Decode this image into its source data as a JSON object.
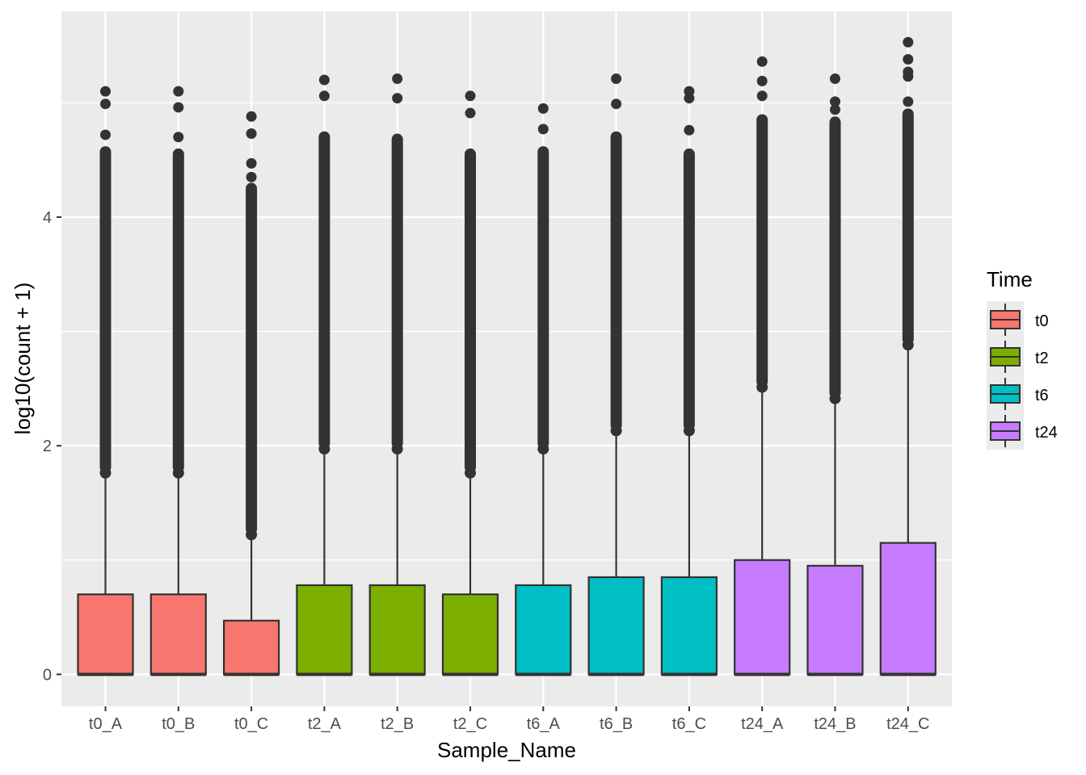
{
  "chart_data": {
    "type": "boxplot",
    "xlabel": "Sample_Name",
    "ylabel": "log10(count + 1)",
    "ylim": [
      -0.28,
      5.8
    ],
    "y_ticks": [
      0,
      2,
      4
    ],
    "grid": true,
    "legend": {
      "title": "Time",
      "position": "right",
      "entries": [
        {
          "label": "t0",
          "color": "#F8766D"
        },
        {
          "label": "t2",
          "color": "#7CAE00"
        },
        {
          "label": "t6",
          "color": "#00BFC4"
        },
        {
          "label": "t24",
          "color": "#C77CFF"
        }
      ]
    },
    "categories": [
      "t0_A",
      "t0_B",
      "t0_C",
      "t2_A",
      "t2_B",
      "t2_C",
      "t6_A",
      "t6_B",
      "t6_C",
      "t24_A",
      "t24_B",
      "t24_C"
    ],
    "boxes": [
      {
        "name": "t0_A",
        "group": "t0",
        "q1": 0,
        "median": 0,
        "q3": 0.7,
        "whisker_low": 0,
        "whisker_high": 1.72,
        "outlier_dense_top": 4.62,
        "outliers": [
          4.72,
          4.99,
          5.1
        ]
      },
      {
        "name": "t0_B",
        "group": "t0",
        "q1": 0,
        "median": 0,
        "q3": 0.7,
        "whisker_low": 0,
        "whisker_high": 1.72,
        "outlier_dense_top": 4.6,
        "outliers": [
          4.7,
          4.96,
          5.1
        ]
      },
      {
        "name": "t0_C",
        "group": "t0",
        "q1": 0,
        "median": 0,
        "q3": 0.47,
        "whisker_low": 0,
        "whisker_high": 1.18,
        "outlier_dense_top": 4.3,
        "outliers": [
          4.35,
          4.47,
          4.73,
          4.88
        ]
      },
      {
        "name": "t2_A",
        "group": "t2",
        "q1": 0,
        "median": 0,
        "q3": 0.78,
        "whisker_low": 0,
        "whisker_high": 1.93,
        "outlier_dense_top": 4.75,
        "outliers": [
          5.06,
          5.2
        ]
      },
      {
        "name": "t2_B",
        "group": "t2",
        "q1": 0,
        "median": 0,
        "q3": 0.78,
        "whisker_low": 0,
        "whisker_high": 1.93,
        "outlier_dense_top": 4.73,
        "outliers": [
          5.04,
          5.21
        ]
      },
      {
        "name": "t2_C",
        "group": "t2",
        "q1": 0,
        "median": 0,
        "q3": 0.7,
        "whisker_low": 0,
        "whisker_high": 1.72,
        "outlier_dense_top": 4.6,
        "outliers": [
          4.91,
          5.06
        ]
      },
      {
        "name": "t6_A",
        "group": "t6",
        "q1": 0,
        "median": 0,
        "q3": 0.78,
        "whisker_low": 0,
        "whisker_high": 1.93,
        "outlier_dense_top": 4.62,
        "outliers": [
          4.77,
          4.95
        ]
      },
      {
        "name": "t6_B",
        "group": "t6",
        "q1": 0,
        "median": 0,
        "q3": 0.85,
        "whisker_low": 0,
        "whisker_high": 2.09,
        "outlier_dense_top": 4.75,
        "outliers": [
          4.99,
          5.21
        ]
      },
      {
        "name": "t6_C",
        "group": "t6",
        "q1": 0,
        "median": 0,
        "q3": 0.85,
        "whisker_low": 0,
        "whisker_high": 2.09,
        "outlier_dense_top": 4.6,
        "outliers": [
          4.76,
          5.04,
          5.1
        ]
      },
      {
        "name": "t24_A",
        "group": "t24",
        "q1": 0,
        "median": 0,
        "q3": 1.0,
        "whisker_low": 0,
        "whisker_high": 2.47,
        "outlier_dense_top": 4.9,
        "outliers": [
          5.06,
          5.19,
          5.36
        ]
      },
      {
        "name": "t24_B",
        "group": "t24",
        "q1": 0,
        "median": 0,
        "q3": 0.95,
        "whisker_low": 0,
        "whisker_high": 2.37,
        "outlier_dense_top": 4.88,
        "outliers": [
          4.94,
          5.01,
          5.21
        ]
      },
      {
        "name": "t24_C",
        "group": "t24",
        "q1": 0,
        "median": 0,
        "q3": 1.15,
        "whisker_low": 0,
        "whisker_high": 2.84,
        "outlier_dense_top": 4.95,
        "outliers": [
          5.01,
          5.23,
          5.27,
          5.38,
          5.53
        ]
      }
    ]
  }
}
